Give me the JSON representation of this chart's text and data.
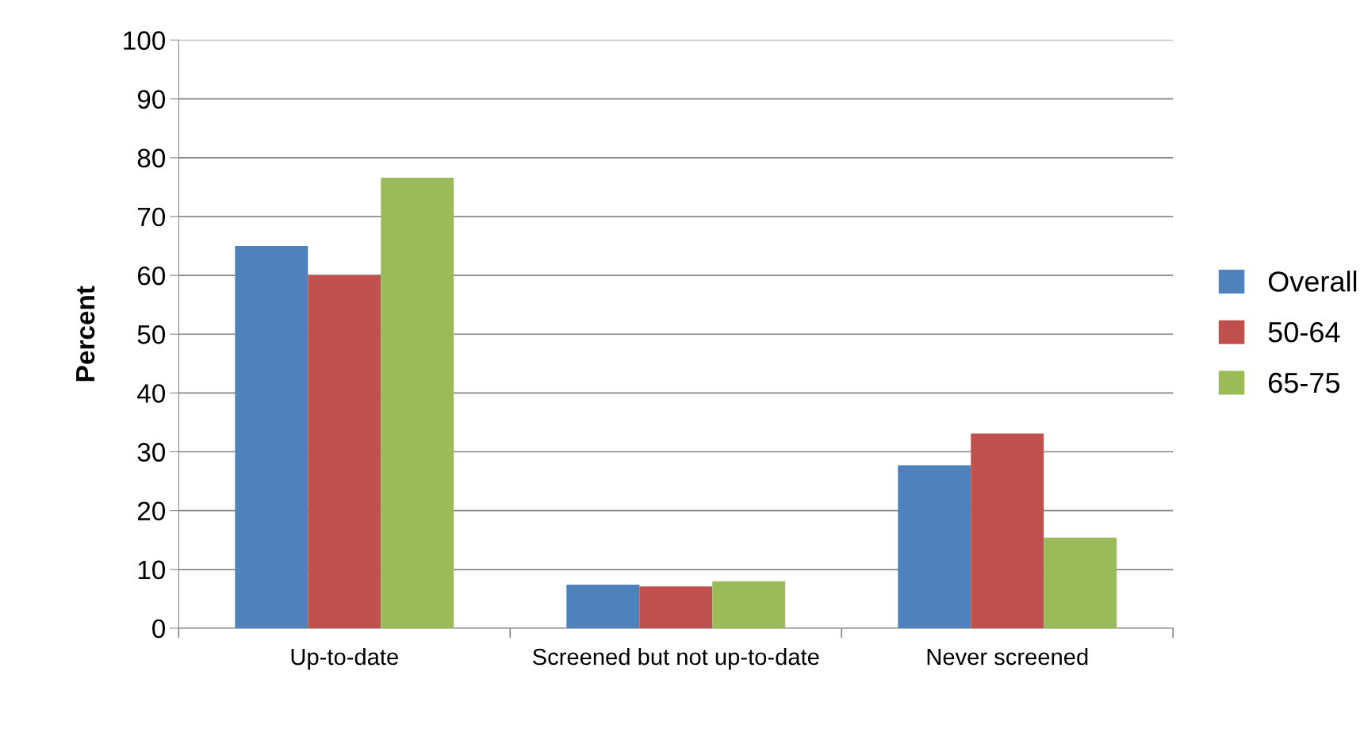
{
  "chart_data": {
    "type": "bar",
    "ylabel": "Percent",
    "categories": [
      "Up-to-date",
      "Screened but not up-to-date",
      "Never screened"
    ],
    "series": [
      {
        "name": "Overall",
        "color": "#4f81bd",
        "values": [
          65,
          7.4,
          27.7
        ]
      },
      {
        "name": "50-64",
        "color": "#c0504d",
        "values": [
          60,
          7.1,
          33.1
        ]
      },
      {
        "name": "65-75",
        "color": "#9bbb59",
        "values": [
          76.6,
          8.0,
          15.4
        ]
      }
    ],
    "ylim": [
      0,
      100
    ],
    "yticks": [
      0,
      10,
      20,
      30,
      40,
      50,
      60,
      70,
      80,
      90,
      100
    ],
    "grid": "y",
    "legend": "right"
  }
}
